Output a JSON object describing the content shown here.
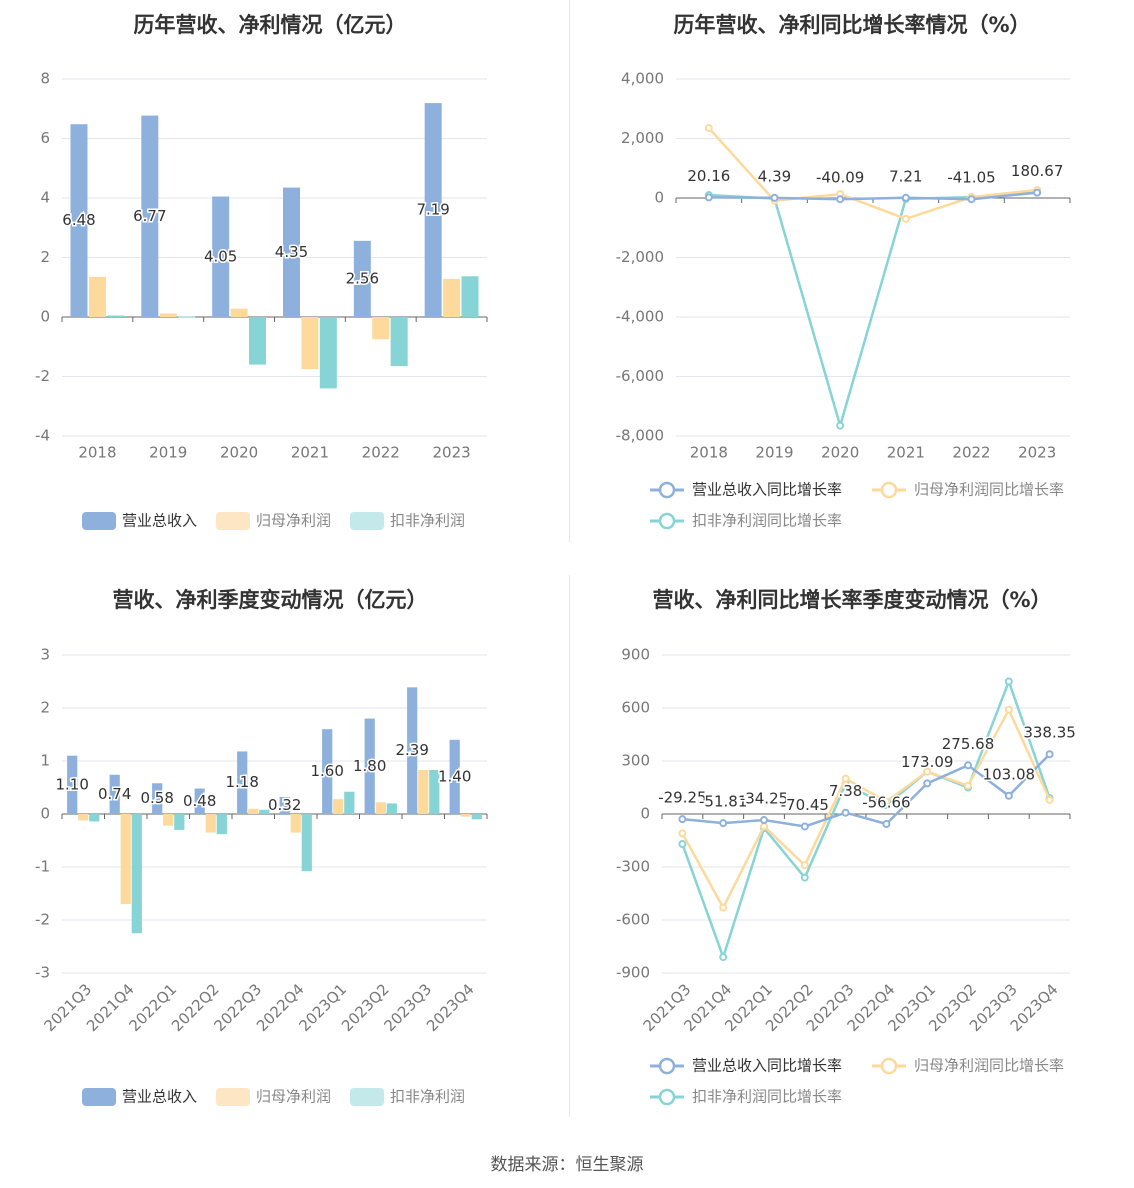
{
  "source_label": "数据来源：恒生聚源",
  "chart_data": [
    {
      "type": "bar",
      "title": "历年营收、净利情况（亿元）",
      "categories": [
        "2018",
        "2019",
        "2020",
        "2021",
        "2022",
        "2023"
      ],
      "ylim": [
        -4,
        8
      ],
      "yticks": [
        -4,
        -2,
        0,
        2,
        4,
        6,
        8
      ],
      "series": [
        {
          "name": "营业总收入",
          "color": "#8eb0dd",
          "values": [
            6.48,
            6.77,
            4.05,
            4.35,
            2.56,
            7.19
          ],
          "labels": [
            "6.48",
            "6.77",
            "4.05",
            "4.35",
            "2.56",
            "7.19"
          ]
        },
        {
          "name": "归母净利润",
          "color": "#fdd99b",
          "values": [
            1.35,
            0.12,
            0.28,
            -1.75,
            -0.75,
            1.28
          ]
        },
        {
          "name": "扣非净利润",
          "color": "#86d4d6",
          "values": [
            0.05,
            0.02,
            -1.6,
            -2.4,
            -1.65,
            1.37
          ]
        }
      ],
      "legend_colors": [
        "#8eb0dd",
        "#fde6c4",
        "#c4e9ea"
      ],
      "grid": true,
      "legend": "bottom"
    },
    {
      "type": "line",
      "title": "历年营收、净利同比增长率情况（%）",
      "categories": [
        "2018",
        "2019",
        "2020",
        "2021",
        "2022",
        "2023"
      ],
      "ylim": [
        -8000,
        4000
      ],
      "yticks": [
        -8000,
        -6000,
        -4000,
        -2000,
        0,
        2000,
        4000
      ],
      "ytick_labels": [
        "-8,000",
        "-6,000",
        "-4,000",
        "-2,000",
        "0",
        "2,000",
        "4,000"
      ],
      "series": [
        {
          "name": "营业总收入同比增长率",
          "color": "#8eb0dd",
          "values": [
            20.16,
            4.39,
            -40.09,
            7.21,
            -41.05,
            180.67
          ],
          "labels": [
            "20.16",
            "4.39",
            "-40.09",
            "7.21",
            "-41.05",
            "180.67"
          ]
        },
        {
          "name": "归母净利润同比增长率",
          "color": "#fdd99b",
          "values": [
            2350,
            -90,
            130,
            -700,
            30,
            270
          ]
        },
        {
          "name": "扣非净利润同比增长率",
          "color": "#86d4d6",
          "values": [
            100,
            -20,
            -7650,
            -30,
            30,
            200
          ]
        }
      ],
      "grid": true,
      "legend": "bottom"
    },
    {
      "type": "bar",
      "title": "营收、净利季度变动情况（亿元）",
      "categories": [
        "2021Q3",
        "2021Q4",
        "2022Q1",
        "2022Q2",
        "2022Q3",
        "2022Q4",
        "2023Q1",
        "2023Q2",
        "2023Q3",
        "2023Q4"
      ],
      "ylim": [
        -3,
        3
      ],
      "yticks": [
        -3,
        -2,
        -1,
        0,
        1,
        2,
        3
      ],
      "series": [
        {
          "name": "营业总收入",
          "color": "#8eb0dd",
          "values": [
            1.1,
            0.74,
            0.58,
            0.48,
            1.18,
            0.32,
            1.6,
            1.8,
            2.39,
            1.4
          ],
          "labels": [
            "1.10",
            "0.74",
            "0.58",
            "0.48",
            "1.18",
            "0.32",
            "1.60",
            "1.80",
            "2.39",
            "1.40"
          ]
        },
        {
          "name": "归母净利润",
          "color": "#fdd99b",
          "values": [
            -0.12,
            -1.7,
            -0.22,
            -0.35,
            0.1,
            -0.35,
            0.28,
            0.22,
            0.83,
            -0.05
          ]
        },
        {
          "name": "扣非净利润",
          "color": "#86d4d6",
          "values": [
            -0.14,
            -2.25,
            -0.3,
            -0.38,
            0.08,
            -1.08,
            0.42,
            0.2,
            0.83,
            -0.1
          ]
        }
      ],
      "legend_colors": [
        "#8eb0dd",
        "#fde6c4",
        "#c4e9ea"
      ],
      "grid": true,
      "legend": "bottom"
    },
    {
      "type": "line",
      "title": "营收、净利同比增长率季度变动情况（%）",
      "categories": [
        "2021Q3",
        "2021Q4",
        "2022Q1",
        "2022Q2",
        "2022Q3",
        "2022Q4",
        "2023Q1",
        "2023Q2",
        "2023Q3",
        "2023Q4"
      ],
      "ylim": [
        -900,
        900
      ],
      "yticks": [
        -900,
        -600,
        -300,
        0,
        300,
        600,
        900
      ],
      "series": [
        {
          "name": "营业总收入同比增长率",
          "color": "#8eb0dd",
          "values": [
            -29.25,
            -51.81,
            -34.25,
            -70.45,
            7.38,
            -56.66,
            173.09,
            275.68,
            103.08,
            338.35
          ],
          "labels": [
            "-29.25",
            "-51.81",
            "-34.25",
            "-70.45",
            "7.38",
            "-56.66",
            "173.09",
            "275.68",
            "103.08",
            "338.35"
          ]
        },
        {
          "name": "归母净利润同比增长率",
          "color": "#fdd99b",
          "values": [
            -110,
            -530,
            -70,
            -290,
            200,
            70,
            240,
            160,
            590,
            80
          ]
        },
        {
          "name": "扣非净利润同比增长率",
          "color": "#86d4d6",
          "values": [
            -170,
            -810,
            -80,
            -360,
            170,
            50,
            240,
            150,
            750,
            90
          ]
        }
      ],
      "grid": true,
      "legend": "bottom"
    }
  ]
}
